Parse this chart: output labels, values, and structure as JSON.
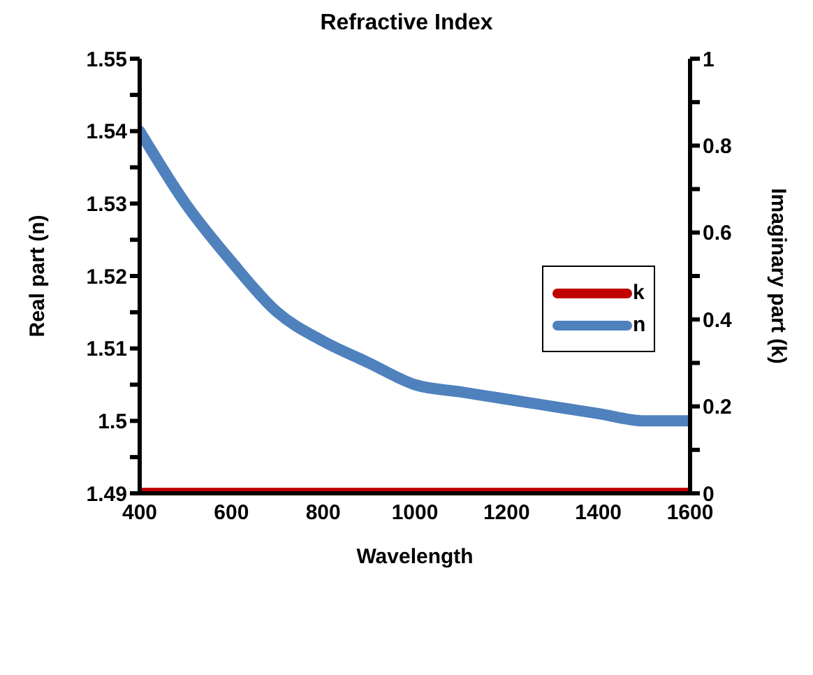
{
  "chart_data": {
    "type": "line",
    "title": "Refractive Index",
    "xlabel": "Wavelength",
    "ylabel": "Real part (n)",
    "y2label": "Imaginary part (k)",
    "x": [
      400,
      500,
      600,
      700,
      800,
      900,
      1000,
      1100,
      1200,
      1300,
      1400,
      1500,
      1600
    ],
    "series": [
      {
        "name": "n",
        "color": "#4f81bd",
        "values": [
          1.54,
          1.53,
          1.522,
          1.515,
          1.511,
          1.508,
          1.505,
          1.504,
          1.503,
          1.502,
          1.501,
          1.5,
          1.5
        ]
      },
      {
        "name": "k",
        "color": "#c00000",
        "axis": "y2",
        "values": [
          0,
          0,
          0,
          0,
          0,
          0,
          0,
          0,
          0,
          0,
          0,
          0,
          0
        ]
      }
    ],
    "xlim": [
      400,
      1600
    ],
    "xticks": [
      400,
      600,
      800,
      1000,
      1200,
      1400,
      1600
    ],
    "ylim": [
      1.49,
      1.55
    ],
    "yticks": [
      1.49,
      {
        "value": 1.495,
        "label": null
      },
      1.5,
      {
        "value": 1.505,
        "label": null
      },
      1.51,
      {
        "value": 1.515,
        "label": null
      },
      1.52,
      {
        "value": 1.525,
        "label": null
      },
      1.53,
      {
        "value": 1.535,
        "label": null
      },
      1.54,
      {
        "value": 1.545,
        "label": null
      },
      1.55
    ],
    "y2lim": [
      0,
      1
    ],
    "y2ticks": [
      0,
      {
        "value": 0.1,
        "label": null
      },
      0.2,
      {
        "value": 0.3,
        "label": null
      },
      0.4,
      {
        "value": 0.5,
        "label": null
      },
      0.6,
      {
        "value": 0.7,
        "label": null
      },
      0.8,
      {
        "value": 0.9,
        "label": null
      },
      1
    ],
    "grid": false,
    "legend": "right",
    "line_style": "solid"
  }
}
